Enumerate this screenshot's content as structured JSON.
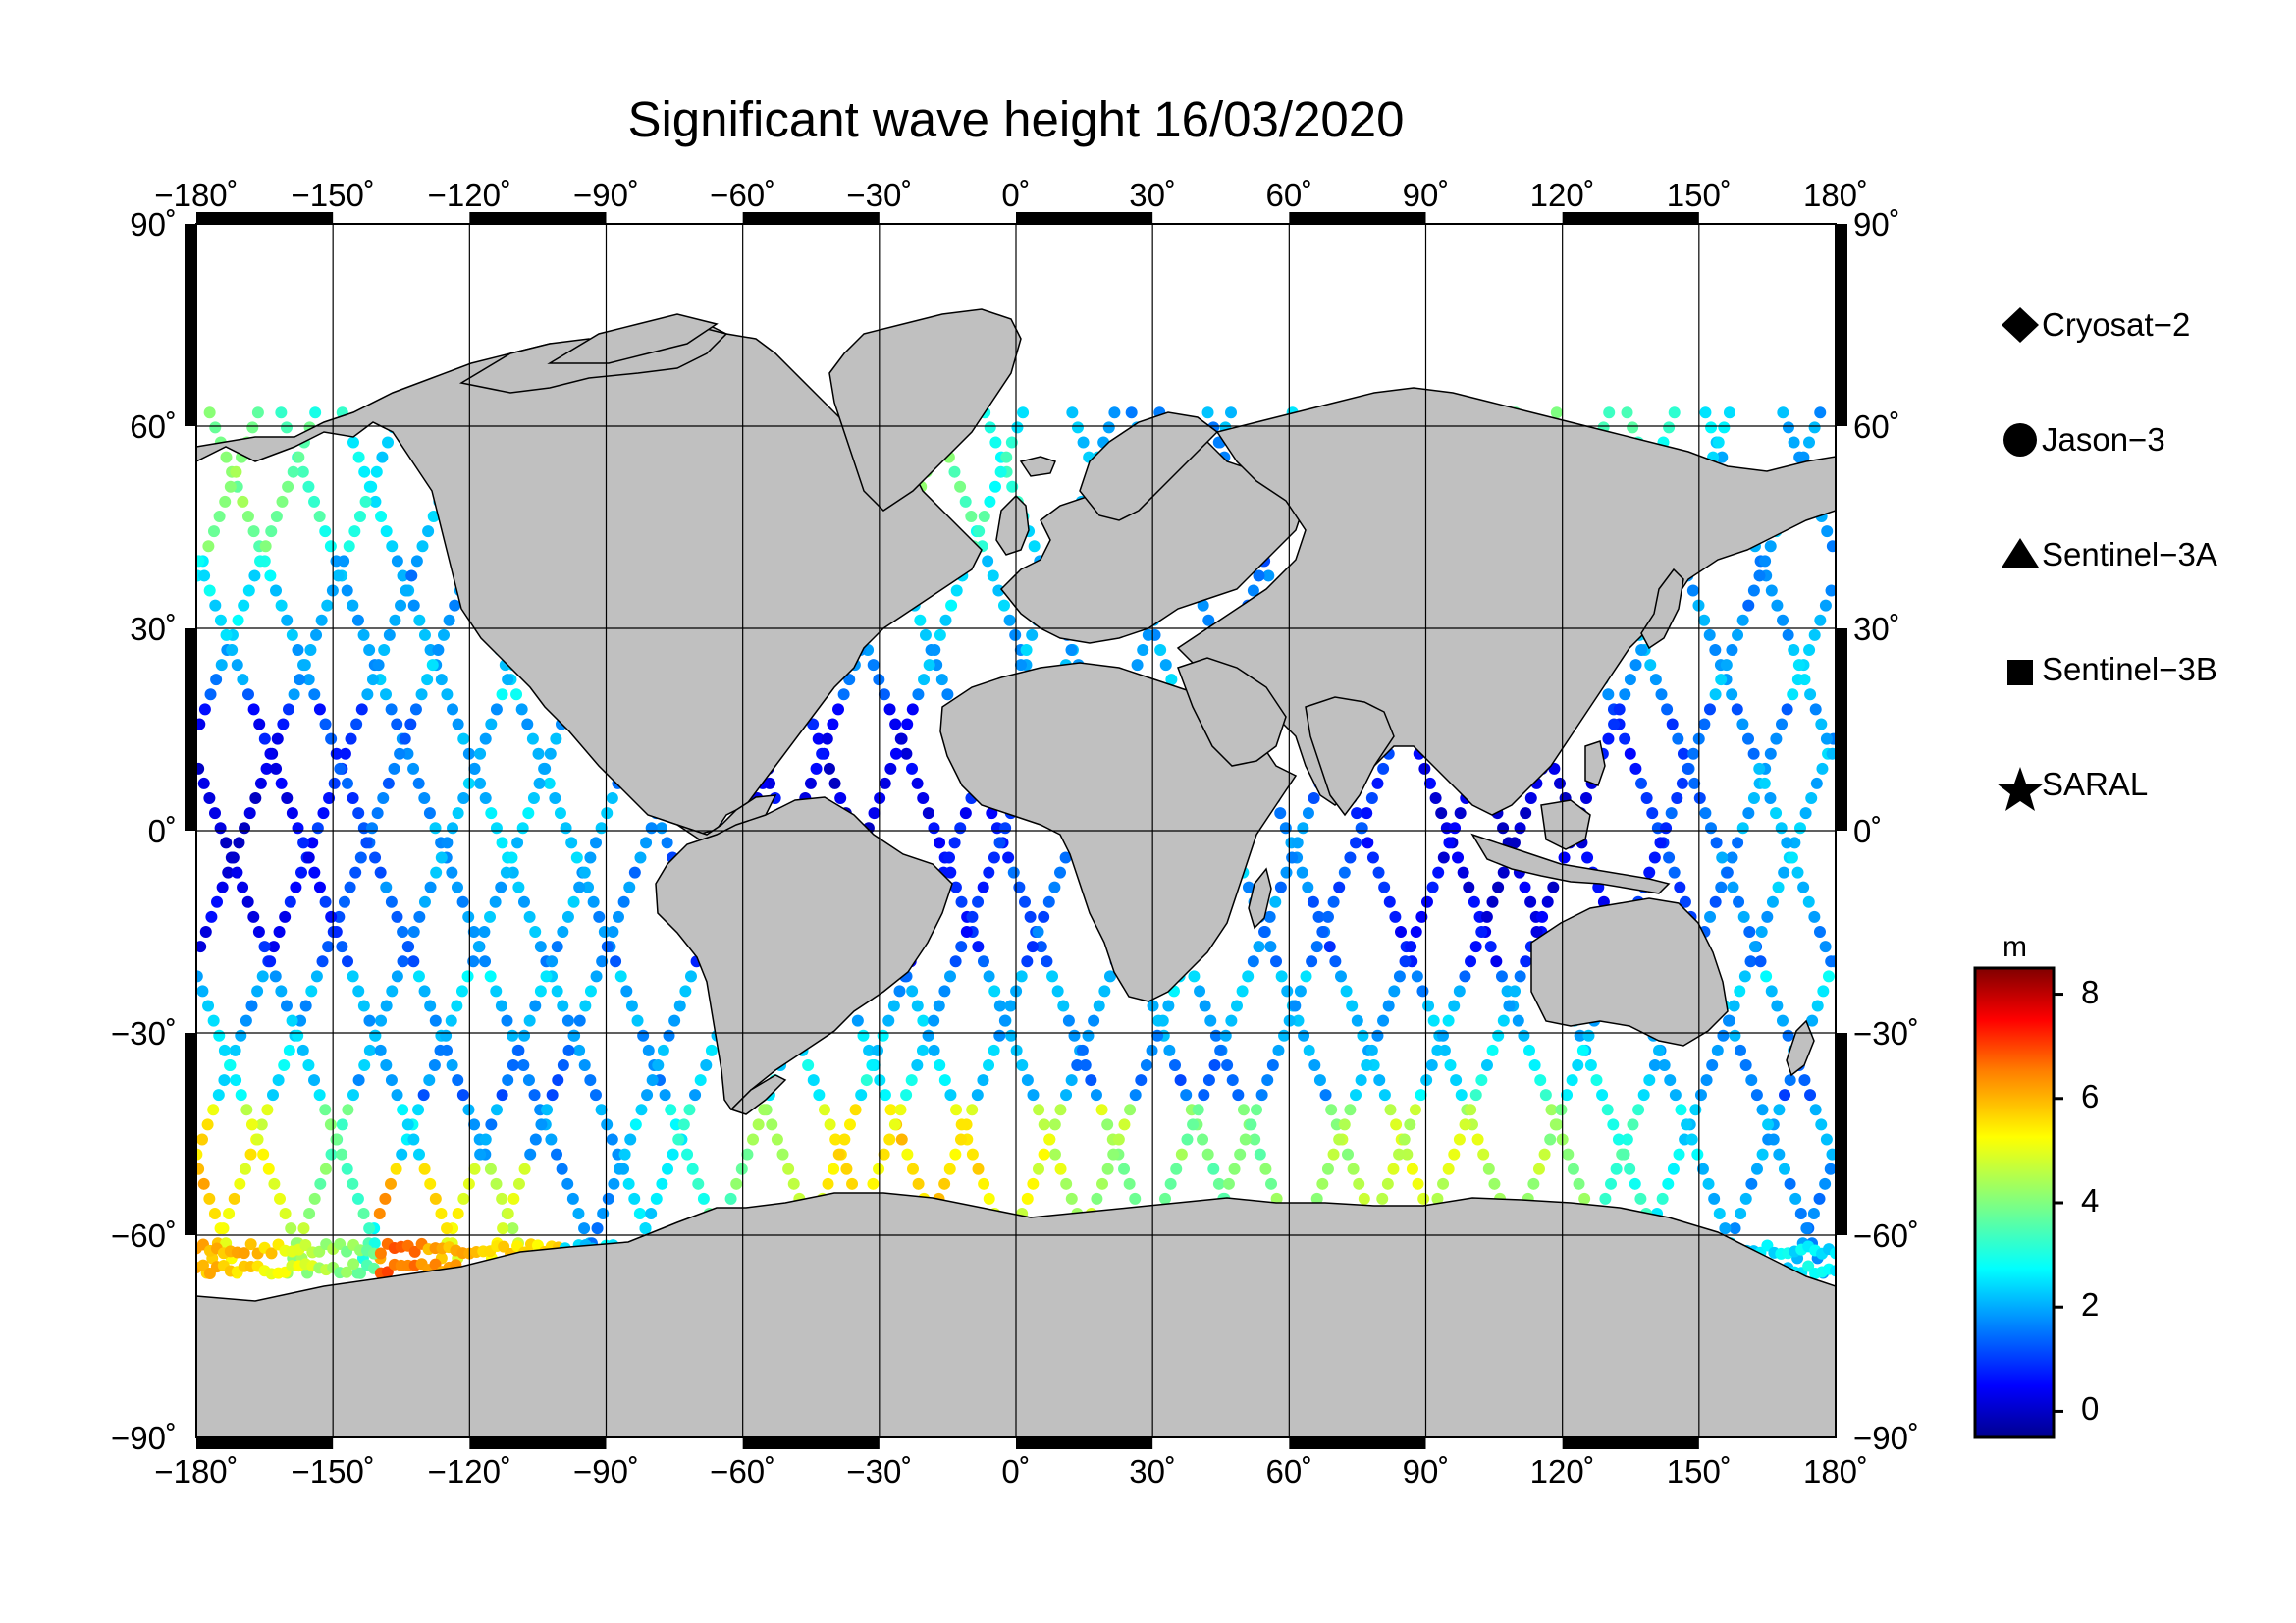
{
  "title": "Significant wave height 16/03/2020",
  "lon_ticks": [
    "−180˚",
    "−150˚",
    "−120˚",
    "−90˚",
    "−60˚",
    "−30˚",
    "0˚",
    "30˚",
    "60˚",
    "90˚",
    "120˚",
    "150˚",
    "180˚"
  ],
  "lat_ticks": [
    "90˚",
    "60˚",
    "30˚",
    "0˚",
    "−30˚",
    "−60˚",
    "−90˚"
  ],
  "legend": [
    {
      "label": "Cryosat−2",
      "icon": "diamond-icon"
    },
    {
      "label": "Jason−3",
      "icon": "circle-icon"
    },
    {
      "label": "Sentinel−3A",
      "icon": "triangle-icon"
    },
    {
      "label": "Sentinel−3B",
      "icon": "square-icon"
    },
    {
      "label": "SARAL",
      "icon": "star-icon"
    }
  ],
  "colorbar": {
    "unit": "m",
    "ticks": [
      "8",
      "6",
      "4",
      "2",
      "0"
    ],
    "min": -0.5,
    "max": 8.5,
    "colormap": [
      "#00008f",
      "#0000ff",
      "#0080ff",
      "#00ffff",
      "#80ff80",
      "#ffff00",
      "#ff8000",
      "#ff0000",
      "#800000"
    ]
  },
  "colors": {
    "land": "#c0c0c0",
    "ocean": "#ffffff",
    "grid": "#000000"
  }
}
